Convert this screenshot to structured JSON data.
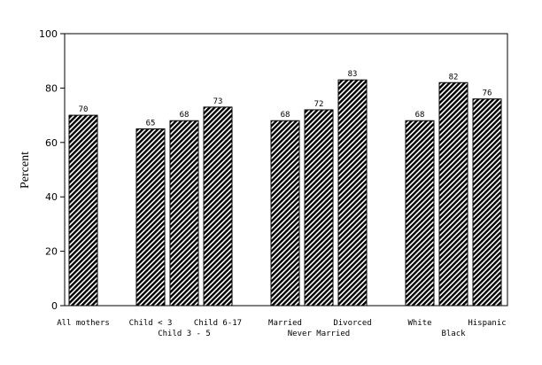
{
  "chart_data": {
    "type": "bar",
    "y_label": "Percent",
    "categories": [
      "All mothers",
      "Child < 3",
      "Child 3 - 5",
      "Child 6-17",
      "Married",
      "Never Married",
      "Divorced",
      "White",
      "Black",
      "Hispanic"
    ],
    "values": [
      70,
      65,
      68,
      73,
      68,
      72,
      83,
      68,
      82,
      76
    ],
    "color": "#000000",
    "ylim": [
      0,
      100
    ],
    "yticks": [
      0,
      20,
      40,
      60,
      80,
      100
    ]
  }
}
